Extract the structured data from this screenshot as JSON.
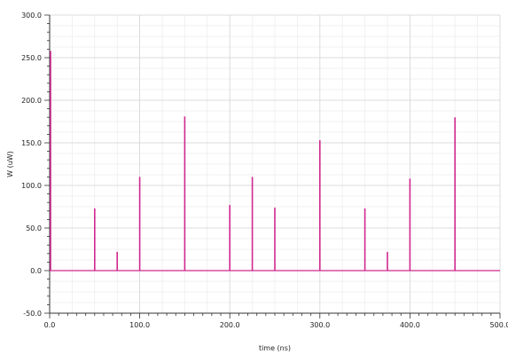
{
  "chart_data": {
    "type": "line",
    "title": "",
    "xlabel": "time (ns)",
    "ylabel": "W (uW)",
    "xlim": [
      0,
      500
    ],
    "ylim": [
      -50,
      300
    ],
    "x_ticks": [
      0,
      100,
      200,
      300,
      400,
      500
    ],
    "x_tick_labels": [
      "0.0",
      "100.0",
      "200.0",
      "300.0",
      "400.0",
      "500.0"
    ],
    "y_ticks": [
      -50,
      0,
      50,
      100,
      150,
      200,
      250,
      300
    ],
    "y_tick_labels": [
      "-50.0",
      "0.0",
      "50.0",
      "100.0",
      "150.0",
      "200.0",
      "250.0",
      "300.0"
    ],
    "grid": true,
    "baseline": 0,
    "series_color": "#d0288f",
    "series": [
      {
        "spikes": [
          {
            "x": 0,
            "y": 258
          },
          {
            "x": 50,
            "y": 73
          },
          {
            "x": 75,
            "y": 22
          },
          {
            "x": 100,
            "y": 110
          },
          {
            "x": 150,
            "y": 181
          },
          {
            "x": 200,
            "y": 77
          },
          {
            "x": 225,
            "y": 110
          },
          {
            "x": 250,
            "y": 74
          },
          {
            "x": 300,
            "y": 153
          },
          {
            "x": 350,
            "y": 73
          },
          {
            "x": 375,
            "y": 22
          },
          {
            "x": 400,
            "y": 108
          },
          {
            "x": 450,
            "y": 180
          }
        ]
      }
    ]
  }
}
